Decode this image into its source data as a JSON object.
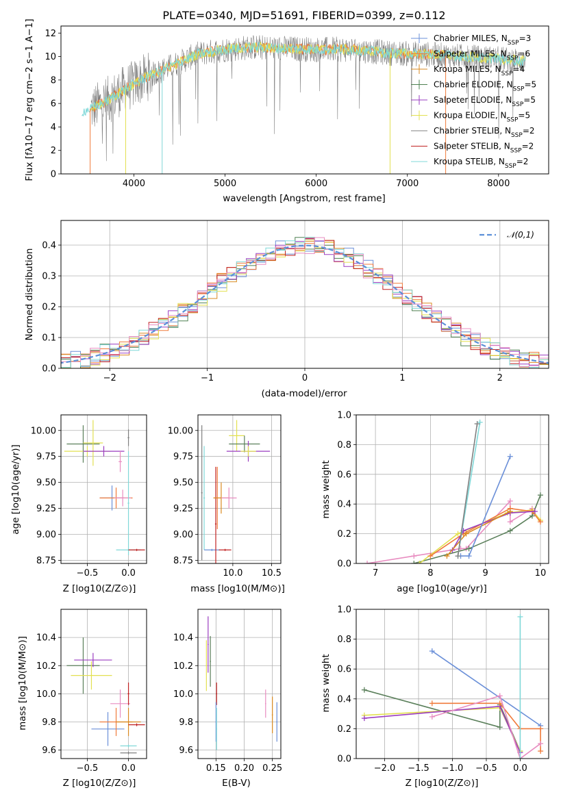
{
  "colors": {
    "chabrier_miles": "#6a8fd8",
    "salpeter_miles": "#f07a3a",
    "kroupa_miles": "#d98a20",
    "chabrier_elodie": "#4e8050",
    "salpeter_elodie": "#9a3cc0",
    "kroupa_elodie": "#e2e050",
    "chabrier_stelib": "#7f7f7f",
    "salpeter_stelib": "#c02020",
    "kroupa_stelib": "#7fd8d8",
    "gauss": "#5b8fd8",
    "pink": "#e88cc0",
    "darkgreen": "#5a7f5a"
  },
  "chart_data": [
    {
      "id": "spectrum",
      "type": "line",
      "title": "PLATE=0340, MJD=51691, FIBERID=0399, z=0.112",
      "xlabel": "wavelength [Angstrom, rest frame]",
      "ylabel": "Flux [fλ10−17 erg cm−2 s−1 A−1]",
      "xlim": [
        3200,
        8550
      ],
      "ylim": [
        0,
        12.6
      ],
      "grid": false,
      "xticks": [
        4000,
        5000,
        6000,
        7000,
        8000
      ],
      "yticks": [
        0,
        2,
        4,
        6,
        8,
        10,
        12
      ],
      "legend_position": "right",
      "legend": [
        "Chabrier MILES, NSSP=3",
        "Salpeter MILES, NSSP=6",
        "Kroupa MILES, NSSP=4",
        "Chabrier ELODIE, NSSP=5",
        "Salpeter ELODIE, NSSP=5",
        "Kroupa ELODIE, NSSP=5",
        "Chabrier STELIB, NSSP=2",
        "Salpeter STELIB, NSSP=2",
        "Kroupa STELIB, NSSP=2"
      ],
      "continuum": {
        "x": [
          3420,
          3550,
          3700,
          3900,
          4100,
          4300,
          4500,
          4700,
          5000,
          5300,
          5600,
          6000,
          6400,
          6800,
          7200,
          7600,
          8000,
          8300
        ],
        "y": [
          5.3,
          5.6,
          6.2,
          7.2,
          8.1,
          8.8,
          9.5,
          10.2,
          10.6,
          10.8,
          10.7,
          10.6,
          10.6,
          10.3,
          10.2,
          10.0,
          9.8,
          9.6
        ]
      }
    },
    {
      "id": "residuals",
      "type": "line",
      "xlabel": "(data-model)/error",
      "ylabel": "Normed distribution",
      "xlim": [
        -2.5,
        2.5
      ],
      "ylim": [
        0,
        0.48
      ],
      "grid": true,
      "xticks": [
        -2,
        -1,
        0,
        1,
        2
      ],
      "yticks": [
        0.0,
        0.1,
        0.2,
        0.3,
        0.4
      ],
      "legend": [
        "𝒩(0,1)"
      ],
      "legend_position": "top-right"
    },
    {
      "id": "age-vs-z",
      "type": "scatter",
      "xlabel": "Z [log10(Z/Z⊙)]",
      "ylabel": "age  [log10(age/yr)]",
      "xlim": [
        -0.82,
        0.22
      ],
      "ylim": [
        8.72,
        10.15
      ],
      "grid": true,
      "xticks": [
        -0.5,
        0.0
      ],
      "yticks": [
        8.75,
        9.0,
        9.25,
        9.5,
        9.75,
        10.0
      ],
      "points": [
        {
          "c": "darkgreen",
          "x": -0.55,
          "y": 9.87,
          "ex": 0.2,
          "ey": 0.18
        },
        {
          "c": "kroupa_elodie",
          "x": -0.43,
          "y": 9.88,
          "ex": 0.12,
          "ey": 0.22
        },
        {
          "c": "kroupa_elodie",
          "x": -0.5,
          "y": 9.8,
          "ex": 0.28,
          "ey": 0.05
        },
        {
          "c": "salpeter_elodie",
          "x": -0.3,
          "y": 9.8,
          "ex": 0.25,
          "ey": 0.05
        },
        {
          "c": "chabrier_stelib",
          "x": 0.0,
          "y": 9.93,
          "ex": 0.01,
          "ey": 0.08
        },
        {
          "c": "pink",
          "x": -0.1,
          "y": 9.7,
          "ex": 0.02,
          "ey": 0.1
        },
        {
          "c": "chabrier_miles",
          "x": -0.2,
          "y": 9.35,
          "ex": 0.15,
          "ey": 0.12
        },
        {
          "c": "salpeter_miles",
          "x": -0.15,
          "y": 9.35,
          "ex": 0.2,
          "ey": 0.1
        },
        {
          "c": "pink",
          "x": -0.07,
          "y": 9.35,
          "ex": 0.1,
          "ey": 0.08
        },
        {
          "c": "kroupa_stelib",
          "x": 0.0,
          "y": 9.3,
          "ex": 0.01,
          "ey": 0.5
        },
        {
          "c": "kroupa_stelib",
          "x": 0.0,
          "y": 8.85,
          "ex": 0.15,
          "ey": 0.01
        },
        {
          "c": "salpeter_stelib",
          "x": 0.1,
          "y": 8.85,
          "ex": 0.1,
          "ey": 0.01
        }
      ]
    },
    {
      "id": "age-vs-mass",
      "type": "scatter",
      "xlabel": "mass [log10(M/M⊙)]",
      "ylabel": "",
      "xlim": [
        9.55,
        10.62
      ],
      "ylim": [
        8.72,
        10.15
      ],
      "grid": true,
      "xticks": [
        10.0,
        10.5
      ],
      "yticks": [
        8.75,
        9.0,
        9.25,
        9.5,
        9.75,
        10.0
      ],
      "points": [
        {
          "c": "chabrier_stelib",
          "x": 9.6,
          "y": 9.4,
          "ex": 0.01,
          "ey": 0.65
        },
        {
          "c": "kroupa_stelib",
          "x": 9.63,
          "y": 9.35,
          "ex": 0.01,
          "ey": 0.5
        },
        {
          "c": "chabrier_miles",
          "x": 9.73,
          "y": 8.85,
          "ex": 0.1,
          "ey": 0.01
        },
        {
          "c": "salpeter_stelib",
          "x": 9.9,
          "y": 8.85,
          "ex": 0.08,
          "ey": 0.01
        },
        {
          "c": "salpeter_stelib",
          "x": 9.78,
          "y": 9.1,
          "ex": 0.01,
          "ey": 0.55
        },
        {
          "c": "salpeter_miles",
          "x": 9.8,
          "y": 9.35,
          "ex": 0.05,
          "ey": 0.3
        },
        {
          "c": "kroupa_miles",
          "x": 9.85,
          "y": 9.35,
          "ex": 0.1,
          "ey": 0.15
        },
        {
          "c": "pink",
          "x": 9.95,
          "y": 9.35,
          "ex": 0.1,
          "ey": 0.1
        },
        {
          "c": "kroupa_elodie",
          "x": 10.05,
          "y": 9.95,
          "ex": 0.1,
          "ey": 0.15
        },
        {
          "c": "darkgreen",
          "x": 10.15,
          "y": 9.87,
          "ex": 0.2,
          "ey": 0.08
        },
        {
          "c": "salpeter_elodie",
          "x": 10.2,
          "y": 9.8,
          "ex": 0.28,
          "ey": 0.1
        },
        {
          "c": "kroupa_elodie",
          "x": 10.2,
          "y": 9.8,
          "ex": 0.1,
          "ey": 0.05
        }
      ]
    },
    {
      "id": "mass-weight-vs-age",
      "type": "line",
      "xlabel": "age  [log10(age/yr)]",
      "ylabel": "mass weight",
      "xlim": [
        6.65,
        10.15
      ],
      "ylim": [
        0,
        1.0
      ],
      "grid": true,
      "xticks": [
        7,
        8,
        9,
        10
      ],
      "yticks": [
        0.0,
        0.2,
        0.4,
        0.6,
        0.8,
        1.0
      ],
      "series": [
        {
          "c": "pink",
          "x": [
            6.85,
            7.7,
            8.55,
            8.65,
            9.45,
            9.45,
            9.85
          ],
          "y": [
            0.0,
            0.05,
            0.1,
            0.1,
            0.42,
            0.28,
            0.37
          ]
        },
        {
          "c": "darkgreen",
          "x": [
            7.7,
            8.7,
            9.45,
            9.85,
            10.0
          ],
          "y": [
            0.0,
            0.1,
            0.22,
            0.32,
            0.46
          ]
        },
        {
          "c": "kroupa_elodie",
          "x": [
            7.8,
            8.5,
            9.4,
            9.85,
            10.0
          ],
          "y": [
            0.0,
            0.2,
            0.34,
            0.36,
            0.29
          ]
        },
        {
          "c": "salpeter_miles",
          "x": [
            8.0,
            8.6,
            9.45,
            9.85,
            10.0
          ],
          "y": [
            0.05,
            0.2,
            0.37,
            0.35,
            0.28
          ]
        },
        {
          "c": "salpeter_elodie",
          "x": [
            8.4,
            8.6,
            9.45,
            9.9
          ],
          "y": [
            0.09,
            0.22,
            0.34,
            0.35
          ]
        },
        {
          "c": "kroupa_miles",
          "x": [
            8.3,
            8.65,
            9.45
          ],
          "y": [
            0.05,
            0.2,
            0.35
          ]
        },
        {
          "c": "chabrier_miles",
          "x": [
            8.55,
            8.7,
            9.45
          ],
          "y": [
            0.05,
            0.05,
            0.72
          ]
        },
        {
          "c": "kroupa_stelib",
          "x": [
            8.5,
            8.9
          ],
          "y": [
            0.05,
            0.95
          ]
        },
        {
          "c": "chabrier_stelib",
          "x": [
            8.5,
            8.85
          ],
          "y": [
            0.05,
            0.94
          ]
        }
      ]
    },
    {
      "id": "mass-vs-z",
      "type": "scatter",
      "xlabel": "Z [log10(Z/Z⊙)]",
      "ylabel": "mass [log10(M/M⊙)]",
      "xlim": [
        -0.82,
        0.22
      ],
      "ylim": [
        9.54,
        10.6
      ],
      "grid": true,
      "xticks": [
        -0.5,
        0.0
      ],
      "yticks": [
        9.6,
        9.8,
        10.0,
        10.2,
        10.4
      ],
      "points": [
        {
          "c": "darkgreen",
          "x": -0.55,
          "y": 10.2,
          "ex": 0.2,
          "ey": 0.2
        },
        {
          "c": "salpeter_elodie",
          "x": -0.43,
          "y": 10.24,
          "ex": 0.23,
          "ey": 0.05
        },
        {
          "c": "kroupa_elodie",
          "x": -0.45,
          "y": 10.13,
          "ex": 0.25,
          "ey": 0.1
        },
        {
          "c": "pink",
          "x": -0.1,
          "y": 9.93,
          "ex": 0.12,
          "ey": 0.1
        },
        {
          "c": "salpeter_stelib",
          "x": 0.0,
          "y": 10.0,
          "ex": 0.01,
          "ey": 0.08
        },
        {
          "c": "chabrier_miles",
          "x": -0.25,
          "y": 9.75,
          "ex": 0.2,
          "ey": 0.12
        },
        {
          "c": "salpeter_miles",
          "x": -0.15,
          "y": 9.8,
          "ex": 0.2,
          "ey": 0.1
        },
        {
          "c": "kroupa_miles",
          "x": 0.0,
          "y": 9.8,
          "ex": 0.15,
          "ey": 0.1
        },
        {
          "c": "kroupa_stelib",
          "x": 0.0,
          "y": 9.63,
          "ex": 0.1,
          "ey": 0.01
        },
        {
          "c": "salpeter_stelib",
          "x": 0.1,
          "y": 9.78,
          "ex": 0.1,
          "ey": 0.01
        },
        {
          "c": "chabrier_stelib",
          "x": 0.0,
          "y": 9.58,
          "ex": 0.1,
          "ey": 0.01
        }
      ]
    },
    {
      "id": "mass-vs-ebv",
      "type": "scatter",
      "xlabel": "E(B-V)",
      "ylabel": "",
      "xlim": [
        0.118,
        0.265
      ],
      "ylim": [
        9.54,
        10.6
      ],
      "grid": true,
      "xticks": [
        0.15,
        0.2,
        0.25
      ],
      "yticks": [
        9.6,
        9.8,
        10.0,
        10.2,
        10.4
      ],
      "points": [
        {
          "c": "kroupa_elodie",
          "x": 0.133,
          "y": 10.2,
          "ex": 0.001,
          "ey": 0.18
        },
        {
          "c": "salpeter_elodie",
          "x": 0.136,
          "y": 10.35,
          "ex": 0.001,
          "ey": 0.2
        },
        {
          "c": "darkgreen",
          "x": 0.14,
          "y": 10.23,
          "ex": 0.001,
          "ey": 0.18
        },
        {
          "c": "salpeter_stelib",
          "x": 0.151,
          "y": 10.0,
          "ex": 0.001,
          "ey": 0.08
        },
        {
          "c": "chabrier_miles",
          "x": 0.15,
          "y": 9.8,
          "ex": 0.001,
          "ey": 0.14
        },
        {
          "c": "kroupa_stelib",
          "x": 0.151,
          "y": 9.75,
          "ex": 0.001,
          "ey": 0.15
        },
        {
          "c": "pink",
          "x": 0.238,
          "y": 9.93,
          "ex": 0.001,
          "ey": 0.1
        },
        {
          "c": "kroupa_miles",
          "x": 0.25,
          "y": 9.85,
          "ex": 0.001,
          "ey": 0.13
        },
        {
          "c": "chabrier_miles",
          "x": 0.258,
          "y": 9.8,
          "ex": 0.001,
          "ey": 0.14
        }
      ]
    },
    {
      "id": "mass-weight-vs-z",
      "type": "line",
      "xlabel": "Z [log10(Z/Z⊙)]",
      "ylabel": "mass weight",
      "xlim": [
        -2.42,
        0.42
      ],
      "ylim": [
        0,
        1.0
      ],
      "grid": true,
      "xticks": [
        -2.0,
        -1.5,
        -1.0,
        -0.5,
        0.0
      ],
      "yticks": [
        0.0,
        0.2,
        0.4,
        0.6,
        0.8,
        1.0
      ],
      "series": [
        {
          "c": "chabrier_miles",
          "x": [
            -1.3,
            0.3
          ],
          "y": [
            0.72,
            0.22
          ]
        },
        {
          "c": "darkgreen",
          "x": [
            -2.3,
            -0.3,
            -0.3,
            0.0
          ],
          "y": [
            0.46,
            0.21,
            0.36,
            0.05
          ]
        },
        {
          "c": "kroupa_elodie",
          "x": [
            -2.3,
            -0.3,
            0.0
          ],
          "y": [
            0.29,
            0.34,
            0.05
          ]
        },
        {
          "c": "salpeter_elodie",
          "x": [
            -2.3,
            -0.3,
            0.0
          ],
          "y": [
            0.27,
            0.35,
            0.04
          ]
        },
        {
          "c": "salpeter_miles",
          "x": [
            -1.3,
            -0.3,
            0.0,
            0.3,
            0.3
          ],
          "y": [
            0.37,
            0.37,
            0.2,
            0.2,
            0.05
          ]
        },
        {
          "c": "pink",
          "x": [
            -1.3,
            -0.3,
            0.0,
            0.3
          ],
          "y": [
            0.28,
            0.42,
            0.0,
            0.1
          ]
        },
        {
          "c": "kroupa_stelib",
          "x": [
            0.0,
            0.0
          ],
          "y": [
            0.0,
            0.95
          ]
        }
      ]
    }
  ]
}
